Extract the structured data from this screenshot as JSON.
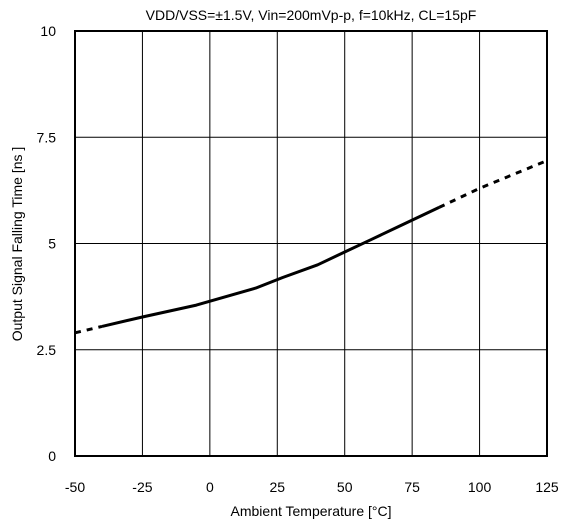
{
  "chart_data": {
    "type": "line",
    "title": "VDD/VSS=±1.5V, Vin=200mVp-p, f=10kHz, CL=15pF",
    "xlabel": "Ambient Temperature [°C]",
    "ylabel": "Output Signal Falling Time [ns ]",
    "xlim": [
      -50,
      125
    ],
    "ylim": [
      0,
      10
    ],
    "grid": true,
    "x_ticks": [
      -50,
      -25,
      0,
      25,
      50,
      75,
      100,
      125
    ],
    "x_tick_labels": [
      "-50",
      "-25",
      "0",
      "25",
      "50",
      "75",
      "100",
      "125"
    ],
    "y_ticks": [
      0,
      2.5,
      5,
      7.5,
      10
    ],
    "y_tick_labels": [
      "0",
      "2.5",
      "5",
      "7.5",
      "10"
    ],
    "series": [
      {
        "style": "dashed",
        "color": "#000000",
        "x": [
          -50,
          -40
        ],
        "y": [
          2.9,
          3.05
        ]
      },
      {
        "style": "solid",
        "color": "#000000",
        "x": [
          -40,
          -25,
          -5,
          17,
          27,
          40,
          50,
          60,
          70,
          85
        ],
        "y": [
          3.05,
          3.27,
          3.55,
          3.95,
          4.2,
          4.5,
          4.8,
          5.1,
          5.4,
          5.85
        ]
      },
      {
        "style": "dashed",
        "color": "#000000",
        "x": [
          85,
          100,
          125
        ],
        "y": [
          5.85,
          6.3,
          6.95
        ]
      }
    ]
  }
}
